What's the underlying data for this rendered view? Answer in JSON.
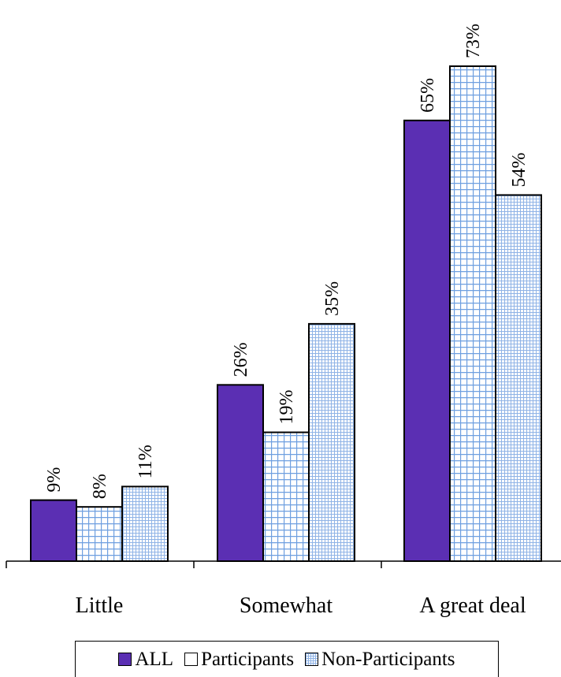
{
  "chart_data": {
    "type": "bar",
    "categories": [
      "Little",
      "Somewhat",
      "A great deal"
    ],
    "series": [
      {
        "name": "ALL",
        "values": [
          9,
          26,
          65
        ],
        "labels": [
          "9%",
          "26%",
          "65%"
        ],
        "color": "#5B2FB3",
        "pattern": "solid"
      },
      {
        "name": "Participants",
        "values": [
          8,
          19,
          73
        ],
        "labels": [
          "8%",
          "19%",
          "73%"
        ],
        "color": "#A9C8EE",
        "pattern": "grid"
      },
      {
        "name": "Non-Participants",
        "values": [
          11,
          35,
          54
        ],
        "labels": [
          "11%",
          "35%",
          "54%"
        ],
        "color": "#A9C8EE",
        "pattern": "fine-grid"
      }
    ],
    "ylim": [
      0,
      75
    ],
    "xlabel": "",
    "ylabel": "",
    "grid": false,
    "legend_position": "bottom"
  }
}
